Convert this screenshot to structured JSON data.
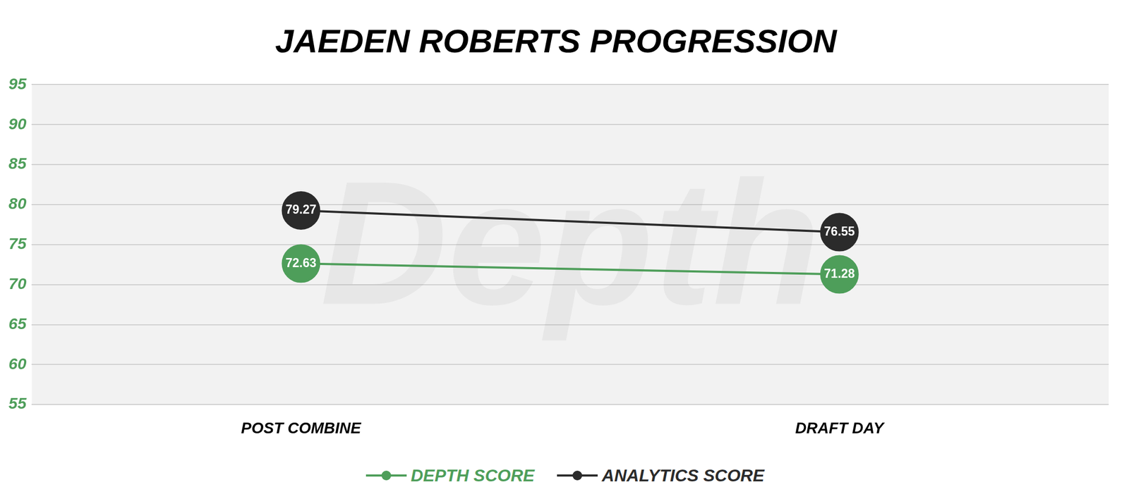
{
  "chart_data": {
    "type": "line",
    "title": "JAEDEN ROBERTS PROGRESSION",
    "watermark": "Depth",
    "categories": [
      "POST COMBINE",
      "DRAFT DAY"
    ],
    "series": [
      {
        "name": "DEPTH SCORE",
        "color": "#4e9e5a",
        "values": [
          72.63,
          71.28
        ],
        "marker": "circle"
      },
      {
        "name": "ANALYTICS SCORE",
        "color": "#2b2b2b",
        "values": [
          79.27,
          76.55
        ],
        "marker": "circle"
      }
    ],
    "ylim": [
      55,
      95
    ],
    "yticks": [
      55,
      60,
      65,
      70,
      75,
      80,
      85,
      90,
      95
    ],
    "grid": true,
    "legend": "bottom",
    "data_labels": true
  }
}
